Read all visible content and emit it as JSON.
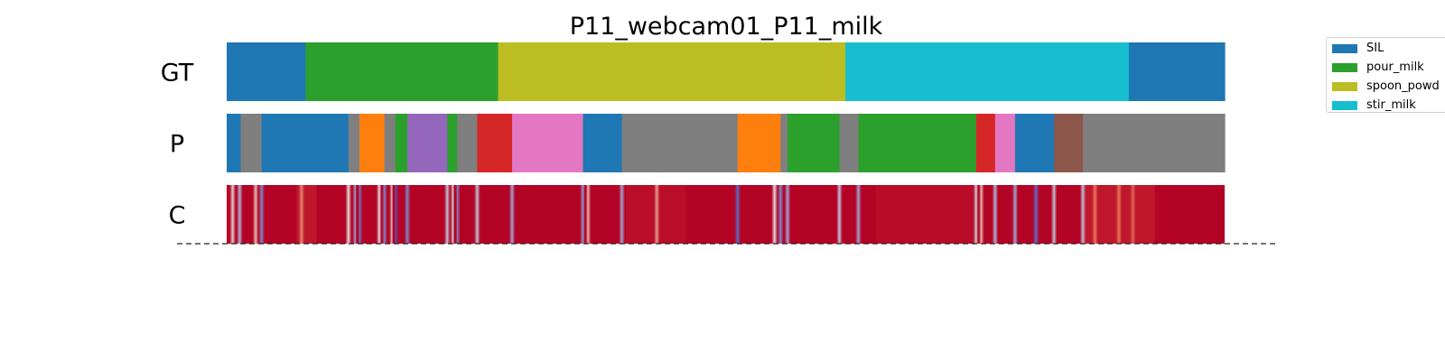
{
  "chart_data": {
    "type": "segmentation_timeline",
    "title": "P11_webcam01_P11_milk",
    "rows": [
      {
        "name": "GT",
        "segments": [
          {
            "start": 0.0,
            "end": 0.079,
            "label": "SIL",
            "color": "#1f77b4"
          },
          {
            "start": 0.079,
            "end": 0.272,
            "label": "pour_milk",
            "color": "#2ca02c"
          },
          {
            "start": 0.272,
            "end": 0.62,
            "label": "spoon_powder",
            "color": "#bcbd22"
          },
          {
            "start": 0.62,
            "end": 0.904,
            "label": "stir_milk",
            "color": "#17becf"
          },
          {
            "start": 0.904,
            "end": 1.0,
            "label": "SIL",
            "color": "#1f77b4"
          }
        ]
      },
      {
        "name": "P",
        "segments": [
          {
            "start": 0.0,
            "end": 0.014,
            "color": "#1f77b4"
          },
          {
            "start": 0.014,
            "end": 0.035,
            "color": "#7f7f7f"
          },
          {
            "start": 0.035,
            "end": 0.122,
            "color": "#1f77b4"
          },
          {
            "start": 0.122,
            "end": 0.133,
            "color": "#7f7f7f"
          },
          {
            "start": 0.133,
            "end": 0.158,
            "color": "#ff7f0e"
          },
          {
            "start": 0.158,
            "end": 0.169,
            "color": "#7f7f7f"
          },
          {
            "start": 0.169,
            "end": 0.181,
            "color": "#2ca02c"
          },
          {
            "start": 0.181,
            "end": 0.221,
            "color": "#9467bd"
          },
          {
            "start": 0.221,
            "end": 0.231,
            "color": "#2ca02c"
          },
          {
            "start": 0.231,
            "end": 0.251,
            "color": "#7f7f7f"
          },
          {
            "start": 0.251,
            "end": 0.286,
            "color": "#d62728"
          },
          {
            "start": 0.286,
            "end": 0.357,
            "color": "#e377c2"
          },
          {
            "start": 0.357,
            "end": 0.396,
            "color": "#1f77b4"
          },
          {
            "start": 0.396,
            "end": 0.512,
            "color": "#7f7f7f"
          },
          {
            "start": 0.512,
            "end": 0.555,
            "color": "#ff7f0e"
          },
          {
            "start": 0.555,
            "end": 0.562,
            "color": "#7f7f7f"
          },
          {
            "start": 0.562,
            "end": 0.614,
            "color": "#2ca02c"
          },
          {
            "start": 0.614,
            "end": 0.633,
            "color": "#7f7f7f"
          },
          {
            "start": 0.633,
            "end": 0.751,
            "color": "#2ca02c"
          },
          {
            "start": 0.751,
            "end": 0.77,
            "color": "#d62728"
          },
          {
            "start": 0.77,
            "end": 0.79,
            "color": "#e377c2"
          },
          {
            "start": 0.79,
            "end": 0.829,
            "color": "#1f77b4"
          },
          {
            "start": 0.829,
            "end": 0.858,
            "color": "#8c564b"
          },
          {
            "start": 0.858,
            "end": 1.0,
            "color": "#7f7f7f"
          }
        ]
      },
      {
        "name": "C",
        "colormap": "coolwarm",
        "base_color": "#b40426",
        "dips": [
          {
            "pos": 0.006,
            "level": 0.55
          },
          {
            "pos": 0.013,
            "level": 0.35
          },
          {
            "pos": 0.029,
            "level": 0.6
          },
          {
            "pos": 0.035,
            "level": 0.2
          },
          {
            "pos": 0.075,
            "level": 0.7
          },
          {
            "pos": 0.122,
            "level": 0.5
          },
          {
            "pos": 0.129,
            "level": 0.3
          },
          {
            "pos": 0.133,
            "level": 0.15
          },
          {
            "pos": 0.153,
            "level": 0.5
          },
          {
            "pos": 0.158,
            "level": 0.2
          },
          {
            "pos": 0.166,
            "level": 0.5
          },
          {
            "pos": 0.169,
            "level": 0.05
          },
          {
            "pos": 0.181,
            "level": 0.2
          },
          {
            "pos": 0.221,
            "level": 0.4
          },
          {
            "pos": 0.227,
            "level": 0.45
          },
          {
            "pos": 0.231,
            "level": 0.2
          },
          {
            "pos": 0.251,
            "level": 0.4
          },
          {
            "pos": 0.286,
            "level": 0.3
          },
          {
            "pos": 0.357,
            "level": 0.25
          },
          {
            "pos": 0.362,
            "level": 0.6
          },
          {
            "pos": 0.396,
            "level": 0.3
          },
          {
            "pos": 0.431,
            "level": 0.65
          },
          {
            "pos": 0.512,
            "level": 0.1
          },
          {
            "pos": 0.549,
            "level": 0.5
          },
          {
            "pos": 0.555,
            "level": 0.2
          },
          {
            "pos": 0.562,
            "level": 0.3
          },
          {
            "pos": 0.614,
            "level": 0.4
          },
          {
            "pos": 0.633,
            "level": 0.3
          },
          {
            "pos": 0.751,
            "level": 0.45
          },
          {
            "pos": 0.756,
            "level": 0.6
          },
          {
            "pos": 0.77,
            "level": 0.35
          },
          {
            "pos": 0.79,
            "level": 0.3
          },
          {
            "pos": 0.811,
            "level": 0.1
          },
          {
            "pos": 0.829,
            "level": 0.4
          },
          {
            "pos": 0.858,
            "level": 0.4
          },
          {
            "pos": 0.87,
            "level": 0.75
          },
          {
            "pos": 0.894,
            "level": 0.75
          },
          {
            "pos": 0.908,
            "level": 0.8
          }
        ]
      }
    ],
    "legend": {
      "placement": "top-right",
      "entries": [
        {
          "label": "SIL",
          "color": "#1f77b4"
        },
        {
          "label": "pour_milk",
          "color": "#2ca02c"
        },
        {
          "label": "spoon_powd",
          "color": "#bcbd22"
        },
        {
          "label": "stir_milk",
          "color": "#17becf"
        }
      ]
    }
  }
}
